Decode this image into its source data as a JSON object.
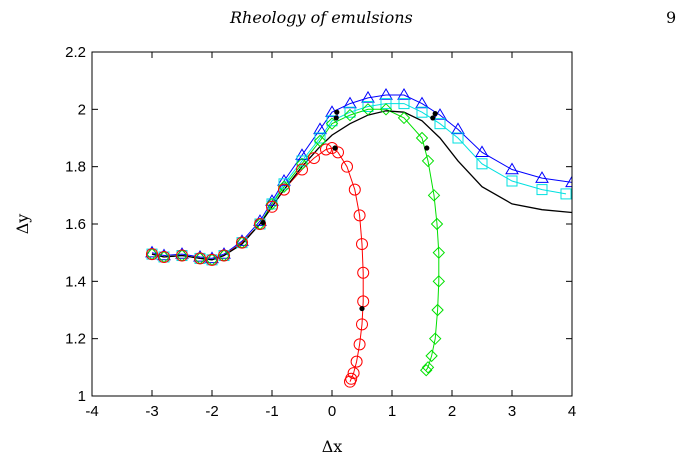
{
  "header": {
    "running_title": "Rheology of emulsions",
    "page_number": "9"
  },
  "chart_data": {
    "type": "line",
    "title": "",
    "xlabel": "Δx",
    "ylabel": "Δy",
    "xlim": [
      -4,
      4
    ],
    "ylim": [
      1,
      2.2
    ],
    "xticks": [
      "-4",
      "-3",
      "-2",
      "-1",
      "0",
      "1",
      "2",
      "3",
      "4"
    ],
    "yticks": [
      "1",
      "1.2",
      "1.4",
      "1.6",
      "1.8",
      "2",
      "2.2"
    ],
    "grid": false,
    "legend": "none",
    "colors": {
      "black": "#000000",
      "blue": "#0000ff",
      "cyan": "#00e0e0",
      "green": "#00e000",
      "red": "#ff0000"
    },
    "series": [
      {
        "color": "#000000",
        "marker": "none",
        "x": [
          -3.0,
          -2.8,
          -2.5,
          -2.2,
          -2.0,
          -1.8,
          -1.5,
          -1.2,
          -1.0,
          -0.8,
          -0.5,
          -0.2,
          0.0,
          0.3,
          0.6,
          0.9,
          1.2,
          1.5,
          1.8,
          2.1,
          2.5,
          3.0,
          3.5,
          4.0
        ],
        "y": [
          1.495,
          1.485,
          1.49,
          1.48,
          1.475,
          1.49,
          1.53,
          1.6,
          1.66,
          1.72,
          1.8,
          1.87,
          1.91,
          1.95,
          1.98,
          1.995,
          1.99,
          1.96,
          1.9,
          1.82,
          1.73,
          1.67,
          1.65,
          1.64
        ]
      },
      {
        "color": "#0000ff",
        "marker": "triangle",
        "x": [
          -3.0,
          -2.8,
          -2.5,
          -2.2,
          -2.0,
          -1.8,
          -1.5,
          -1.2,
          -1.0,
          -0.8,
          -0.5,
          -0.2,
          0.0,
          0.3,
          0.6,
          0.9,
          1.2,
          1.5,
          1.8,
          2.1,
          2.5,
          3.0,
          3.5,
          4.0
        ],
        "y": [
          1.5,
          1.49,
          1.495,
          1.485,
          1.48,
          1.495,
          1.54,
          1.61,
          1.68,
          1.75,
          1.84,
          1.93,
          1.99,
          2.02,
          2.04,
          2.05,
          2.05,
          2.02,
          1.98,
          1.93,
          1.85,
          1.79,
          1.76,
          1.745
        ]
      },
      {
        "color": "#00e0e0",
        "marker": "square",
        "x": [
          -3.0,
          -2.8,
          -2.5,
          -2.2,
          -2.0,
          -1.8,
          -1.5,
          -1.2,
          -1.0,
          -0.8,
          -0.5,
          -0.2,
          0.0,
          0.3,
          0.6,
          0.9,
          1.2,
          1.5,
          1.8,
          2.1,
          2.5,
          3.0,
          3.5,
          3.9
        ],
        "y": [
          1.495,
          1.485,
          1.49,
          1.48,
          1.475,
          1.49,
          1.535,
          1.6,
          1.67,
          1.74,
          1.82,
          1.9,
          1.96,
          1.99,
          2.01,
          2.02,
          2.02,
          1.99,
          1.95,
          1.9,
          1.81,
          1.75,
          1.72,
          1.705
        ]
      },
      {
        "color": "#00e000",
        "marker": "diamond",
        "x": [
          -3.0,
          -2.8,
          -2.5,
          -2.2,
          -2.0,
          -1.8,
          -1.5,
          -1.2,
          -1.0,
          -0.8,
          -0.5,
          -0.2,
          0.0,
          0.3,
          0.6,
          0.9,
          1.2,
          1.5,
          1.6,
          1.7,
          1.75,
          1.78,
          1.78,
          1.76,
          1.72,
          1.66,
          1.6,
          1.57
        ],
        "y": [
          1.495,
          1.485,
          1.49,
          1.48,
          1.475,
          1.49,
          1.535,
          1.6,
          1.67,
          1.73,
          1.81,
          1.89,
          1.95,
          1.98,
          2.0,
          2.0,
          1.97,
          1.9,
          1.82,
          1.7,
          1.6,
          1.5,
          1.4,
          1.3,
          1.2,
          1.14,
          1.1,
          1.09
        ]
      },
      {
        "color": "#ff0000",
        "marker": "circle",
        "x": [
          -3.0,
          -2.8,
          -2.5,
          -2.2,
          -2.0,
          -1.8,
          -1.5,
          -1.2,
          -1.0,
          -0.8,
          -0.5,
          -0.3,
          -0.1,
          0.0,
          0.1,
          0.25,
          0.38,
          0.46,
          0.5,
          0.52,
          0.52,
          0.5,
          0.46,
          0.41,
          0.36,
          0.32,
          0.3
        ],
        "y": [
          1.495,
          1.485,
          1.49,
          1.48,
          1.475,
          1.49,
          1.535,
          1.6,
          1.66,
          1.72,
          1.79,
          1.83,
          1.86,
          1.865,
          1.85,
          1.8,
          1.72,
          1.63,
          1.53,
          1.43,
          1.33,
          1.25,
          1.18,
          1.12,
          1.08,
          1.06,
          1.05
        ]
      }
    ],
    "highlight_points": [
      {
        "x": -1.15,
        "y": 1.605
      },
      {
        "x": 0.05,
        "y": 1.865
      },
      {
        "x": 0.5,
        "y": 1.305
      },
      {
        "x": 0.07,
        "y": 1.97
      },
      {
        "x": 0.08,
        "y": 1.99
      },
      {
        "x": 1.58,
        "y": 1.865
      },
      {
        "x": 1.68,
        "y": 1.97
      },
      {
        "x": 1.72,
        "y": 1.985
      }
    ]
  }
}
